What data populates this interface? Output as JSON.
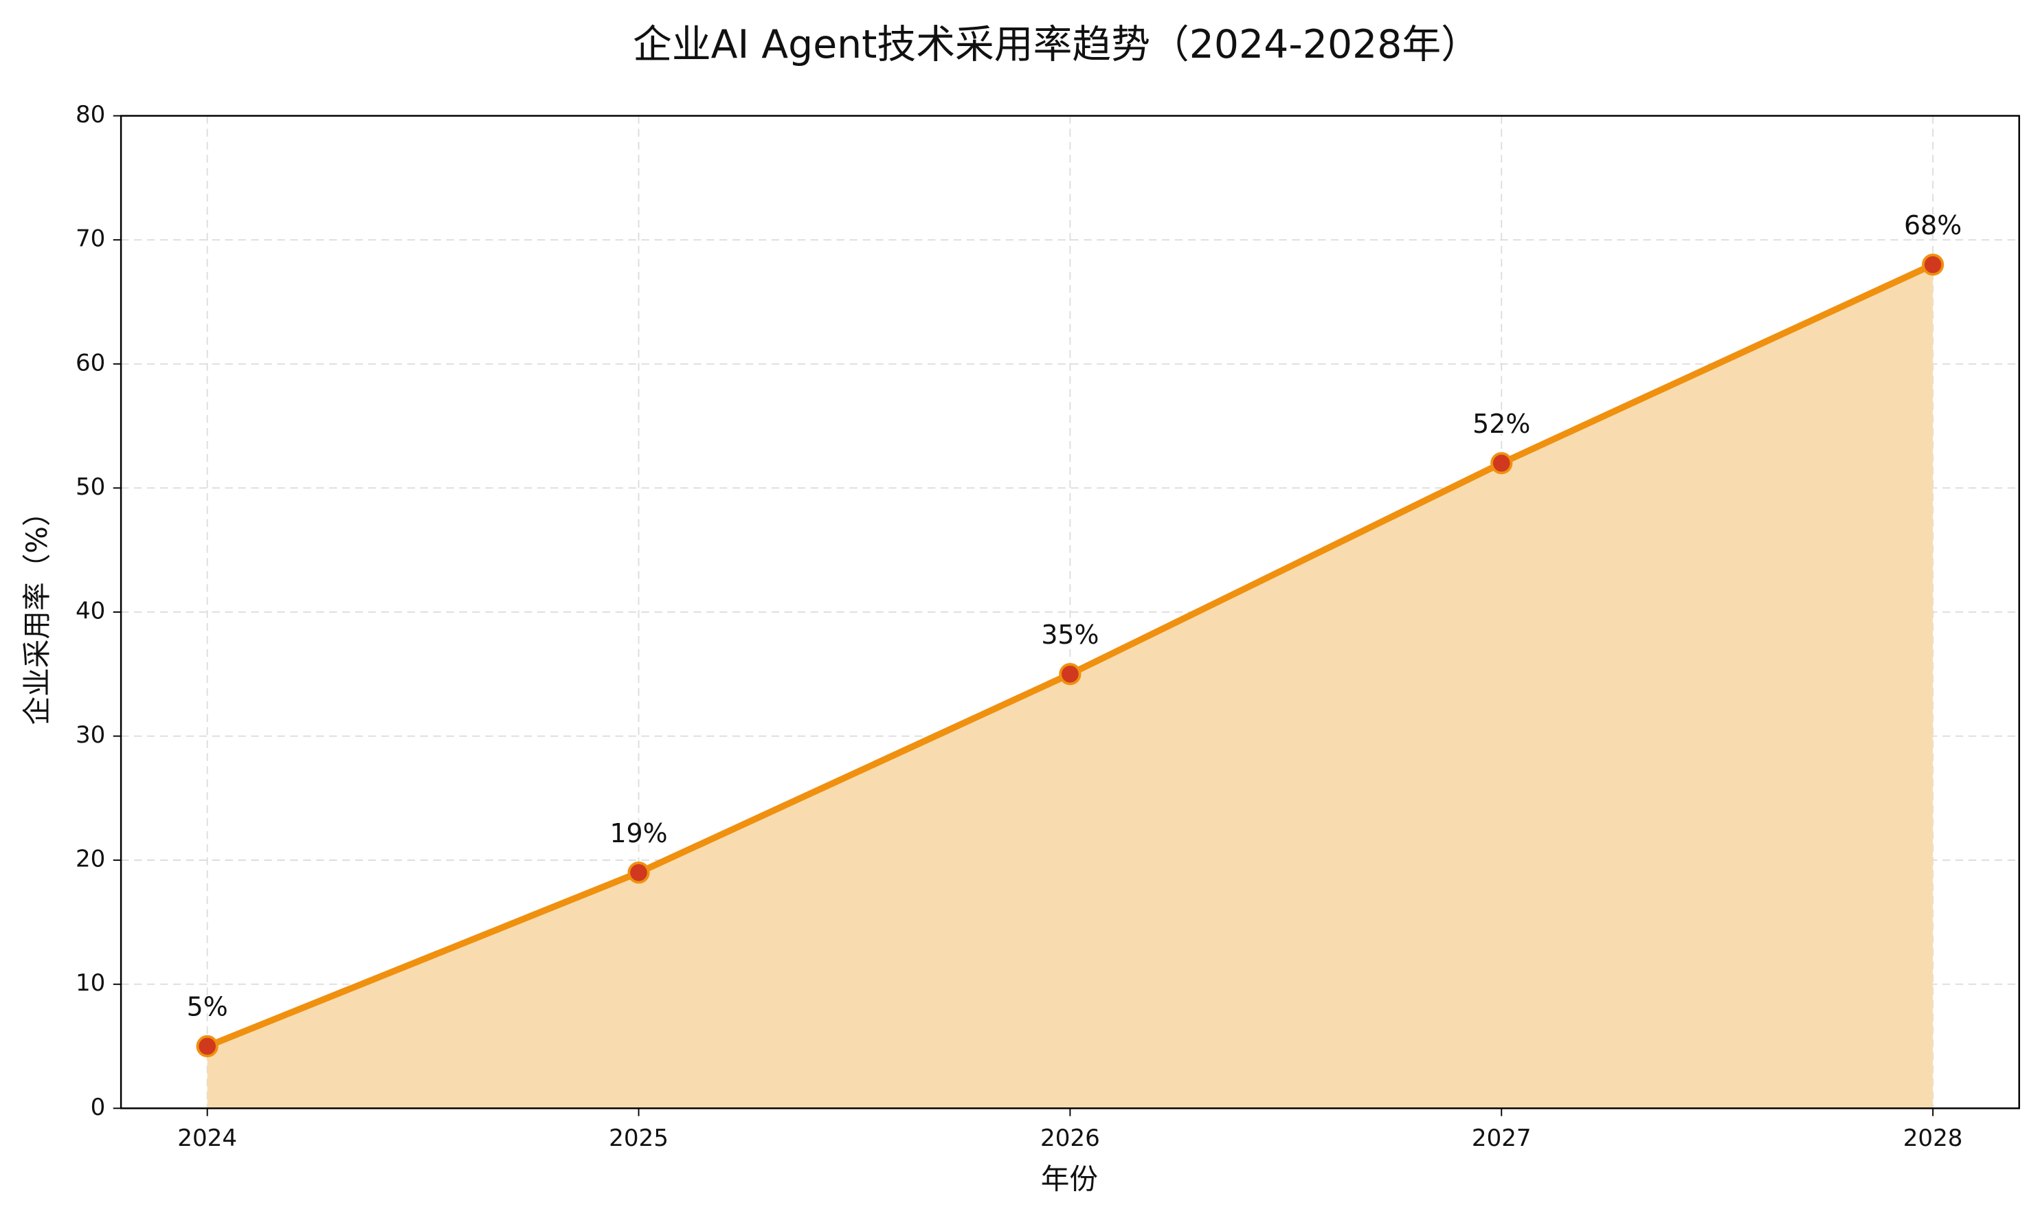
{
  "chart_data": {
    "type": "line",
    "title": "企业AI Agent技术采用率趋势（2024-2028年）",
    "x_label": "年份",
    "y_label": "企业采用率（%）",
    "x": [
      2024,
      2025,
      2026,
      2027,
      2028
    ],
    "values": [
      5,
      19,
      35,
      52,
      68
    ],
    "value_labels": [
      "5%",
      "19%",
      "35%",
      "52%",
      "68%"
    ],
    "color": "#f0900f",
    "fill_color": "#f8dcb0",
    "marker_color": "#d0391e",
    "xlim": [
      2023.8,
      2028.2
    ],
    "xticks": [
      2024,
      2025,
      2026,
      2027,
      2028
    ],
    "ylim": [
      0,
      80
    ],
    "yticks": [
      0,
      10,
      20,
      30,
      40,
      50,
      60,
      70,
      80
    ],
    "grid": true
  }
}
